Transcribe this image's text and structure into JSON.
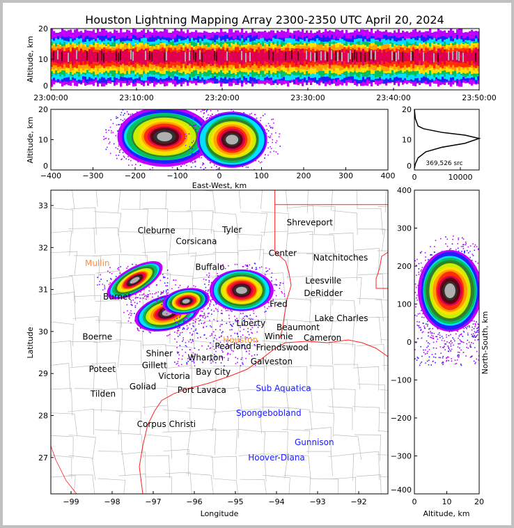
{
  "chart_data": [
    {
      "type": "heatmap",
      "panel": "altitude-time",
      "title": "Houston Lightning Mapping Array 2300-2350 UTC April 20, 2024",
      "ylabel": "Altitude, km",
      "xlabel": "",
      "ylim": [
        0,
        20
      ],
      "yticks": [
        "0",
        "10",
        "20"
      ],
      "xticks": [
        "23:00:00",
        "23:10:00",
        "23:20:00",
        "23:30:00",
        "23:40:00",
        "23:50:00"
      ],
      "band": {
        "alt_low": 1,
        "alt_core_low": 7,
        "alt_center": 10.5,
        "alt_core_high": 14,
        "alt_high": 20
      }
    },
    {
      "type": "heatmap",
      "panel": "altitude-east-west",
      "xlabel": "East-West, km",
      "ylabel": "Altitude, km",
      "xlim": [
        -400,
        400
      ],
      "ylim": [
        0,
        20
      ],
      "xticks": [
        "−400",
        "−300",
        "−200",
        "−100",
        "0",
        "100",
        "200",
        "300",
        "400"
      ],
      "yticks": [
        "0",
        "10",
        "20"
      ],
      "cells": [
        {
          "x": -130,
          "alt": 11,
          "rx": 110,
          "ry": 9.5
        },
        {
          "x": 30,
          "alt": 10,
          "rx": 85,
          "ry": 9.5
        }
      ]
    },
    {
      "type": "line",
      "panel": "altitude-histogram",
      "xlim": [
        0,
        14100
      ],
      "ylim": [
        0,
        20
      ],
      "xticks": [
        "0",
        "10000"
      ],
      "yticks": [
        "0",
        "10",
        "20"
      ],
      "annotation": "369,526 src",
      "points": [
        [
          0,
          0.5
        ],
        [
          200,
          2
        ],
        [
          800,
          4
        ],
        [
          2500,
          6
        ],
        [
          6000,
          7.5
        ],
        [
          11000,
          8.8
        ],
        [
          14100,
          10.4
        ],
        [
          11000,
          11.5
        ],
        [
          6000,
          12.4
        ],
        [
          2000,
          13.6
        ],
        [
          800,
          14.5
        ],
        [
          200,
          17
        ],
        [
          0,
          20
        ]
      ]
    },
    {
      "type": "heatmap",
      "panel": "plan-view-map",
      "xlabel": "Longitude",
      "ylabel": "Latitude",
      "xlim": [
        -99.49,
        -91.3
      ],
      "ylim": [
        26.13,
        33.36
      ],
      "xticks": [
        "−99",
        "−98",
        "−97",
        "−96",
        "−95",
        "−94",
        "−93",
        "−92"
      ],
      "yticks": [
        "27",
        "28",
        "29",
        "30",
        "31",
        "32",
        "33"
      ],
      "cells": [
        {
          "lon": -94.85,
          "lat": 30.98,
          "rx": 0.78,
          "ry": 0.52,
          "rot": 0
        },
        {
          "lon": -97.45,
          "lat": 31.22,
          "rx": 0.75,
          "ry": 0.3,
          "rot": -30
        },
        {
          "lon": -96.65,
          "lat": 30.45,
          "rx": 0.8,
          "ry": 0.42,
          "rot": -15
        },
        {
          "lon": -96.2,
          "lat": 30.72,
          "rx": 0.55,
          "ry": 0.3,
          "rot": -10
        }
      ],
      "cities": [
        {
          "name": "Cleburne",
          "lon": -96.92,
          "lat": 32.4,
          "color": "#000000"
        },
        {
          "name": "Tyler",
          "lon": -95.08,
          "lat": 32.42,
          "color": "#000000"
        },
        {
          "name": "Corsicana",
          "lon": -95.95,
          "lat": 32.15,
          "color": "#000000"
        },
        {
          "name": "Shreveport",
          "lon": -93.19,
          "lat": 32.59,
          "color": "#000000"
        },
        {
          "name": "Center",
          "lon": -93.85,
          "lat": 31.86,
          "color": "#000000"
        },
        {
          "name": "Natchitoches",
          "lon": -92.44,
          "lat": 31.76,
          "color": "#000000"
        },
        {
          "name": "Mullin",
          "lon": -98.36,
          "lat": 31.62,
          "color": "#ff8c40"
        },
        {
          "name": "Buffalo",
          "lon": -95.62,
          "lat": 31.53,
          "color": "#000000"
        },
        {
          "name": "Leesville",
          "lon": -92.86,
          "lat": 31.21,
          "color": "#000000"
        },
        {
          "name": "DeRidder",
          "lon": -92.86,
          "lat": 30.91,
          "color": "#000000"
        },
        {
          "name": "Burnet",
          "lon": -97.88,
          "lat": 30.83,
          "color": "#000000"
        },
        {
          "name": "Fred",
          "lon": -93.95,
          "lat": 30.65,
          "color": "#000000"
        },
        {
          "name": "Lake Charles",
          "lon": -92.56,
          "lat": 30.28,
          "color": "#000000"
        },
        {
          "name": "Beaumont",
          "lon": -93.61,
          "lat": 30.15,
          "color": "#000000"
        },
        {
          "name": "Liberty",
          "lon": -94.42,
          "lat": 30.13,
          "color": "#000000"
        },
        {
          "name": "Winnie",
          "lon": -94.08,
          "lat": 29.88,
          "color": "#000000"
        },
        {
          "name": "Houston",
          "lon": -94.71,
          "lat": 29.83,
          "color": "#ff9a20"
        },
        {
          "name": "Cameron",
          "lon": -92.88,
          "lat": 29.85,
          "color": "#000000"
        },
        {
          "name": "Boerne",
          "lon": -98.36,
          "lat": 29.87,
          "color": "#000000"
        },
        {
          "name": "Shiner",
          "lon": -96.85,
          "lat": 29.48,
          "color": "#000000"
        },
        {
          "name": "Pearland",
          "lon": -94.6,
          "lat": 29.65,
          "color": "#000000"
        },
        {
          "name": "Friendswood",
          "lon": -94.42,
          "lat": 29.57,
          "color": "#000000"
        },
        {
          "name": "Galveston",
          "lon": -94.29,
          "lat": 29.35,
          "color": "#000000"
        },
        {
          "name": "Wharton",
          "lon": -95.64,
          "lat": 29.38,
          "color": "#000000"
        },
        {
          "name": "Poteet",
          "lon": -98.24,
          "lat": 29.1,
          "color": "#000000"
        },
        {
          "name": "Gillett",
          "lon": -96.97,
          "lat": 29.19,
          "color": "#000000"
        },
        {
          "name": "Bay City",
          "lon": -95.54,
          "lat": 29.04,
          "color": "#000000"
        },
        {
          "name": "Victoria",
          "lon": -96.59,
          "lat": 28.87,
          "color": "#000000"
        },
        {
          "name": "Goliad",
          "lon": -97.05,
          "lat": 28.74,
          "color": "#000000"
        },
        {
          "name": "Port Lavaca",
          "lon": -96.02,
          "lat": 28.67,
          "color": "#000000"
        },
        {
          "name": "Tilden",
          "lon": -98.22,
          "lat": 28.51,
          "color": "#000000"
        },
        {
          "name": "Sub Aquatica",
          "lon": -93.83,
          "lat": 28.65,
          "color": "#1a1aff"
        },
        {
          "name": "Spongebobland",
          "lon": -94.19,
          "lat": 28.06,
          "color": "#1a1aff"
        },
        {
          "name": "Corpus Christi",
          "lon": -96.68,
          "lat": 27.79,
          "color": "#000000"
        },
        {
          "name": "Gunnison",
          "lon": -93.08,
          "lat": 27.36,
          "color": "#1a1aff"
        },
        {
          "name": "Hoover-Diana",
          "lon": -94.0,
          "lat": 27.0,
          "color": "#1a1aff"
        }
      ]
    },
    {
      "type": "heatmap",
      "panel": "north-south-altitude",
      "xlabel": "Altitude, km",
      "ylabel": "North-South, km",
      "xlim": [
        0,
        20
      ],
      "ylim": [
        -400,
        400
      ],
      "xticks": [
        "0",
        "10",
        "20"
      ],
      "yticks": [
        "−400",
        "−300",
        "−200",
        "−100",
        "0",
        "100",
        "200",
        "300",
        "400"
      ],
      "cells": [
        {
          "alt": 11,
          "ns": 135,
          "rx": 10,
          "ry": 110
        }
      ]
    }
  ],
  "colors": {
    "density_scale": [
      "#c000ff",
      "#2020ff",
      "#00e0ff",
      "#00c060",
      "#308030",
      "#c8f000",
      "#ffe000",
      "#ffa000",
      "#ff3000",
      "#e00050",
      "#600010",
      "#303030",
      "#b0b0b0"
    ],
    "state_border": "#ff2020",
    "county_border": "#bbbbbb"
  }
}
